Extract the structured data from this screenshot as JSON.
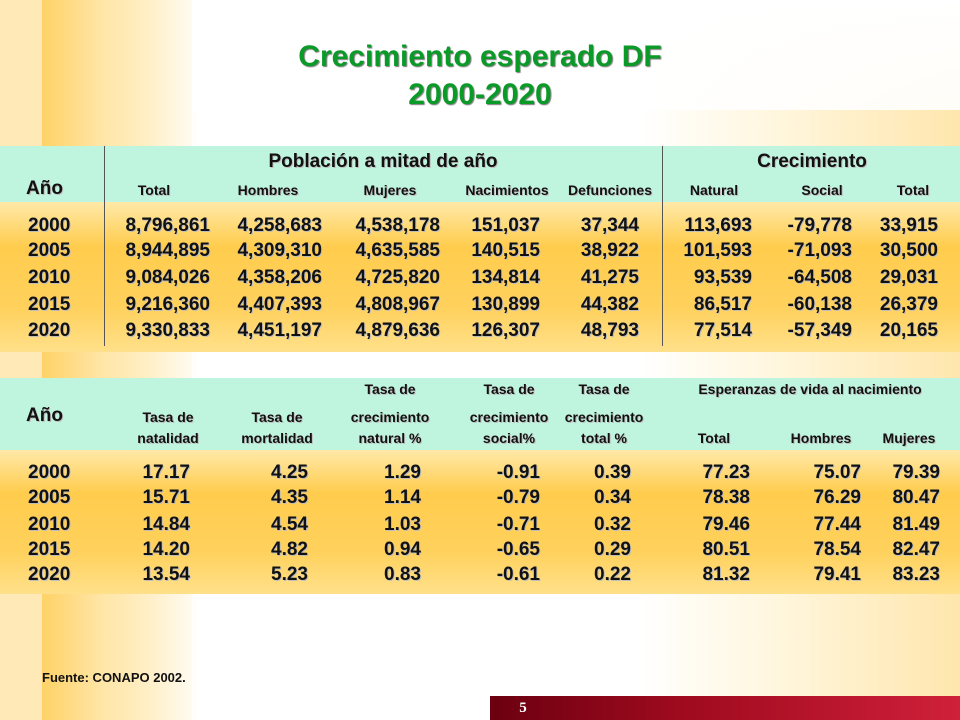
{
  "title_line1": "Crecimiento esperado DF",
  "title_line2": "2000-2020",
  "table1": {
    "group_poblacion": "Población a mitad de año",
    "group_crecimiento": "Crecimiento",
    "year_label": "Año",
    "columns": [
      "Total",
      "Hombres",
      "Mujeres",
      "Nacimientos",
      "Defunciones",
      "Natural",
      "Social",
      "Total"
    ],
    "rows": [
      {
        "year": "2000",
        "values": [
          "8,796,861",
          "4,258,683",
          "4,538,178",
          "151,037",
          "37,344",
          "113,693",
          "-79,778",
          "33,915"
        ]
      },
      {
        "year": "2005",
        "values": [
          "8,944,895",
          "4,309,310",
          "4,635,585",
          "140,515",
          "38,922",
          "101,593",
          "-71,093",
          "30,500"
        ]
      },
      {
        "year": "2010",
        "values": [
          "9,084,026",
          "4,358,206",
          "4,725,820",
          "134,814",
          "41,275",
          "93,539",
          "-64,508",
          "29,031"
        ]
      },
      {
        "year": "2015",
        "values": [
          "9,216,360",
          "4,407,393",
          "4,808,967",
          "130,899",
          "44,382",
          "86,517",
          "-60,138",
          "26,379"
        ]
      },
      {
        "year": "2020",
        "values": [
          "9,330,833",
          "4,451,197",
          "4,879,636",
          "126,307",
          "48,793",
          "77,514",
          "-57,349",
          "20,165"
        ]
      }
    ]
  },
  "table2": {
    "year_label": "Año",
    "group_esperanzas": "Esperanzas  de vida al nacimiento",
    "columns": [
      {
        "line1": "",
        "line2": "Tasa de",
        "line3": "natalidad"
      },
      {
        "line1": "",
        "line2": "Tasa de",
        "line3": "mortalidad"
      },
      {
        "line1": "Tasa de",
        "line2": "crecimiento",
        "line3": "natural %"
      },
      {
        "line1": "Tasa de",
        "line2": "crecimiento",
        "line3": "social%"
      },
      {
        "line1": "Tasa de",
        "line2": "crecimiento",
        "line3": "total %"
      },
      {
        "line1": "",
        "line2": "",
        "line3": "Total"
      },
      {
        "line1": "",
        "line2": "",
        "line3": "Hombres"
      },
      {
        "line1": "",
        "line2": "",
        "line3": "Mujeres"
      }
    ],
    "rows": [
      {
        "year": "2000",
        "values": [
          "17.17",
          "4.25",
          "1.29",
          "-0.91",
          "0.39",
          "77.23",
          "75.07",
          "79.39"
        ]
      },
      {
        "year": "2005",
        "values": [
          "15.71",
          "4.35",
          "1.14",
          "-0.79",
          "0.34",
          "78.38",
          "76.29",
          "80.47"
        ]
      },
      {
        "year": "2010",
        "values": [
          "14.84",
          "4.54",
          "1.03",
          "-0.71",
          "0.32",
          "79.46",
          "77.44",
          "81.49"
        ]
      },
      {
        "year": "2015",
        "values": [
          "14.20",
          "4.82",
          "0.94",
          "-0.65",
          "0.29",
          "80.51",
          "78.54",
          "82.47"
        ]
      },
      {
        "year": "2020",
        "values": [
          "13.54",
          "5.23",
          "0.83",
          "-0.61",
          "0.22",
          "81.32",
          "79.41",
          "83.23"
        ]
      }
    ]
  },
  "source": "Fuente: CONAPO 2002.",
  "page_number": "5"
}
